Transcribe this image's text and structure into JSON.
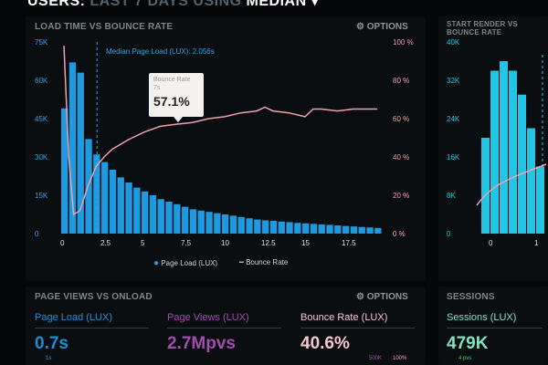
{
  "header": {
    "title_a": "USERS:",
    "title_b": "LAST 7 DAYS",
    "title_c": "USING",
    "title_d": "MEDIAN"
  },
  "load_panel": {
    "title": "LOAD TIME VS BOUNCE RATE",
    "options": "OPTIONS",
    "median_label": "Median Page Load (LUX): 2.056s",
    "y_left_ticks": [
      "75K",
      "60K",
      "45K",
      "30K",
      "15K",
      "0"
    ],
    "y_right_ticks": [
      "100 %",
      "80 %",
      "60 %",
      "40 %",
      "20 %",
      "0 %"
    ],
    "x_ticks": [
      "0",
      "2.5",
      "5",
      "7.5",
      "10",
      "12.5",
      "15",
      "17.5"
    ],
    "legend": {
      "bars": "Page Load (LUX)",
      "line": "Bounce Rate"
    },
    "tooltip": {
      "title": "Bounce Rate",
      "x": "7s",
      "value": "57.1%"
    }
  },
  "render_panel": {
    "title": "START RENDER VS BOUNCE RATE",
    "y_ticks": [
      "40K",
      "32K",
      "24K",
      "16K",
      "8K",
      "0"
    ],
    "x_ticks": [
      "0",
      "1"
    ]
  },
  "pageviews_panel": {
    "title": "PAGE VIEWS VS ONLOAD",
    "options": "OPTIONS",
    "metrics": [
      {
        "label": "Page Load (LUX)",
        "value": "0.7s",
        "color": "#1e8fd6"
      },
      {
        "label": "Page Views (LUX)",
        "value": "2.7Mpvs",
        "color": "#a24bb0"
      },
      {
        "label": "Bounce Rate (LUX)",
        "value": "40.6%",
        "color": "#f6c6cf"
      }
    ],
    "sub_ticks": [
      "1s",
      "500K",
      "100%"
    ]
  },
  "sessions_panel": {
    "title": "SESSIONS",
    "metric": {
      "label": "Sessions (LUX)",
      "value": "479K",
      "color": "#7fe3c0"
    },
    "sub": "4 pvs"
  },
  "colors": {
    "bars": "#1e9be0",
    "line": "#f0a0ae",
    "render_bars": "#22c6e4"
  },
  "chart_data": {
    "type": "bar+line",
    "xlabel": "",
    "ylabel": "",
    "xlim": [
      0,
      20
    ],
    "ylim_left": [
      0,
      75000
    ],
    "ylim_right": [
      0,
      100
    ],
    "bars": {
      "name": "Page Load (LUX)",
      "bin_width": 0.5,
      "values": [
        49000,
        67000,
        63000,
        37000,
        31000,
        28000,
        25000,
        22000,
        20000,
        18000,
        16500,
        15000,
        13500,
        12500,
        11500,
        10500,
        9500,
        9000,
        8500,
        8000,
        7500,
        7000,
        6500,
        6000,
        5500,
        5200,
        5000,
        4700,
        4500,
        4200,
        4000,
        3800,
        3600,
        3400,
        3200,
        3000,
        2800,
        2600,
        2400,
        2200
      ]
    },
    "line": {
      "name": "Bounce Rate",
      "points": [
        [
          0,
          98
        ],
        [
          0.3,
          40
        ],
        [
          0.6,
          10
        ],
        [
          1,
          12
        ],
        [
          1.5,
          25
        ],
        [
          2,
          35
        ],
        [
          2.5,
          40
        ],
        [
          3,
          44
        ],
        [
          4,
          49
        ],
        [
          5,
          53
        ],
        [
          6,
          56
        ],
        [
          7,
          57.1
        ],
        [
          8,
          58
        ],
        [
          9,
          60
        ],
        [
          10,
          61
        ],
        [
          11,
          63
        ],
        [
          12,
          64
        ],
        [
          12.5,
          66
        ],
        [
          13,
          64
        ],
        [
          14,
          63
        ],
        [
          15,
          61
        ],
        [
          15.5,
          65
        ],
        [
          16,
          65
        ],
        [
          17,
          64
        ],
        [
          18,
          65
        ],
        [
          19.5,
          65
        ]
      ]
    },
    "median_x": 2.056,
    "render_bars": [
      20000,
      34000,
      36000,
      34000,
      29000,
      22000,
      14000
    ]
  }
}
